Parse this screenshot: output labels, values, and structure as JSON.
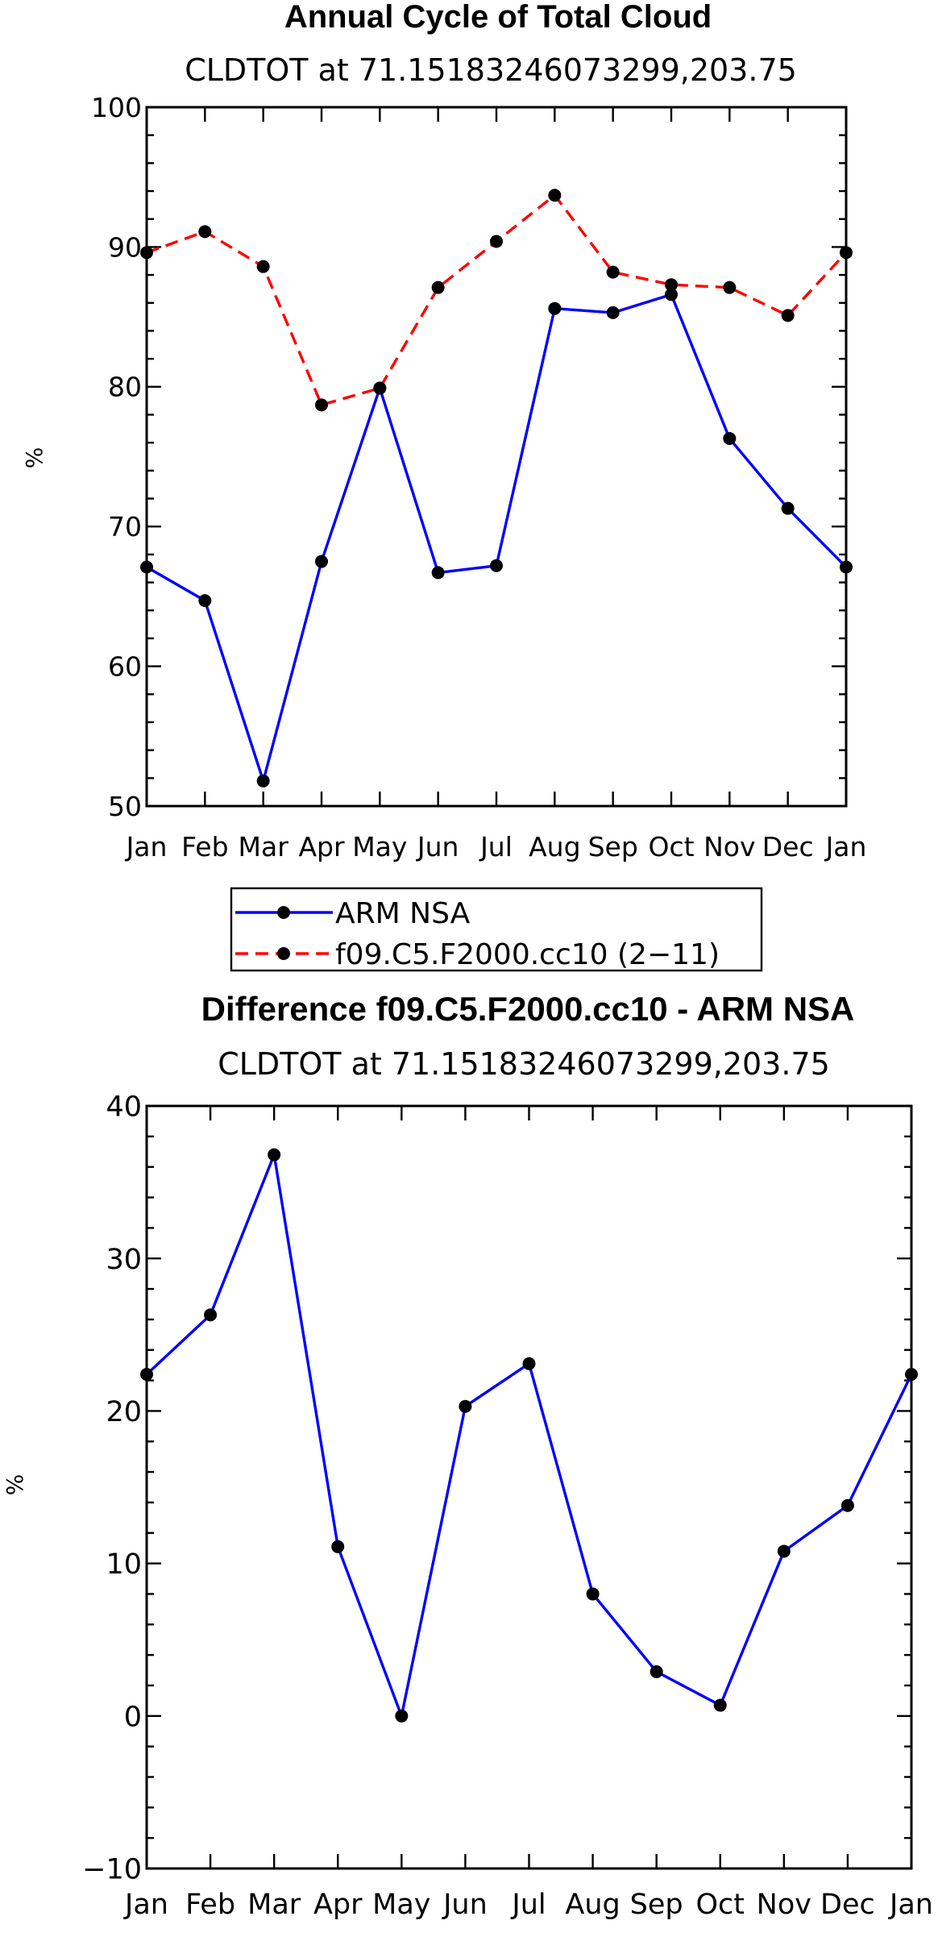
{
  "chart_data": [
    {
      "type": "line",
      "title": "Annual Cycle of Total Cloud",
      "subtitle": "CLDTOT at 71.15183246073299,203.75",
      "xlabel": "",
      "ylabel": "%",
      "categories": [
        "Jan",
        "Feb",
        "Mar",
        "Apr",
        "May",
        "Jun",
        "Jul",
        "Aug",
        "Sep",
        "Oct",
        "Nov",
        "Dec",
        "Jan"
      ],
      "ylim": [
        50,
        100
      ],
      "yticks": [
        50,
        60,
        70,
        80,
        90,
        100
      ],
      "yminor_step": 2,
      "grid": false,
      "legend_position": "bottom-center",
      "series": [
        {
          "name": "ARM NSA",
          "color": "#0000ff",
          "dash": "solid",
          "marker": "dot",
          "values": [
            67.1,
            64.7,
            51.8,
            67.5,
            79.9,
            66.7,
            67.2,
            85.6,
            85.3,
            86.6,
            76.3,
            71.3,
            67.1
          ]
        },
        {
          "name": "f09.C5.F2000.cc10 (2−11)",
          "color": "#ff0000",
          "dash": "dashed",
          "marker": "dot",
          "values": [
            89.6,
            91.1,
            88.6,
            78.7,
            79.9,
            87.1,
            90.4,
            93.7,
            88.2,
            87.3,
            87.1,
            85.1,
            89.6
          ]
        }
      ]
    },
    {
      "type": "line",
      "title": "Difference f09.C5.F2000.cc10 - ARM NSA",
      "subtitle": "CLDTOT at 71.15183246073299,203.75",
      "xlabel": "",
      "ylabel": "%",
      "categories": [
        "Jan",
        "Feb",
        "Mar",
        "Apr",
        "May",
        "Jun",
        "Jul",
        "Aug",
        "Sep",
        "Oct",
        "Nov",
        "Dec",
        "Jan"
      ],
      "ylim": [
        -10,
        40
      ],
      "yticks": [
        -10,
        0,
        10,
        20,
        30,
        40
      ],
      "yminor_step": 2,
      "grid": false,
      "series": [
        {
          "color": "#0000ff",
          "dash": "solid",
          "marker": "dot",
          "values": [
            22.4,
            26.3,
            36.8,
            11.1,
            0.0,
            20.3,
            23.1,
            8.0,
            2.9,
            0.7,
            10.8,
            13.8,
            22.4
          ]
        }
      ]
    }
  ]
}
